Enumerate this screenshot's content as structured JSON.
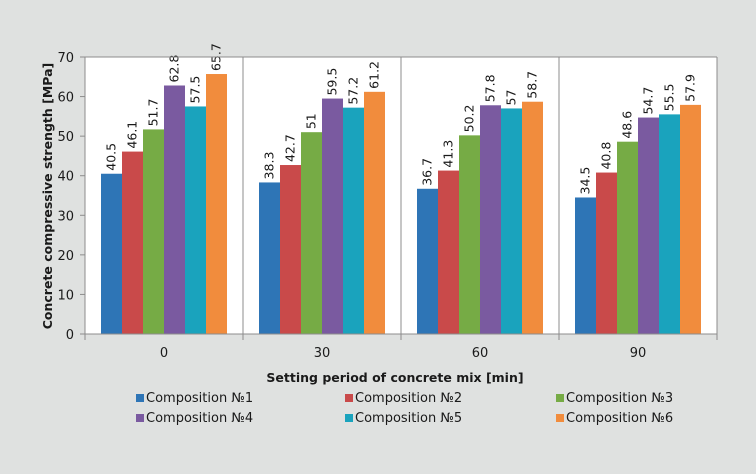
{
  "chart_data": {
    "type": "bar",
    "title": "",
    "xlabel": "Setting period of concrete mix [min]",
    "ylabel": "Concrete compressive strength [MPa]",
    "ylim": [
      0,
      70
    ],
    "yticks": [
      0,
      10,
      20,
      30,
      40,
      50,
      60,
      70
    ],
    "categories": [
      "0",
      "30",
      "60",
      "90"
    ],
    "grid": "vertical separators between categories",
    "legend_position": "bottom",
    "series": [
      {
        "name": "Composition №1",
        "color": "#2e75b6",
        "values": [
          40.5,
          38.3,
          36.7,
          34.5
        ]
      },
      {
        "name": "Composition №2",
        "color": "#c94a4a",
        "values": [
          46.1,
          42.7,
          41.3,
          40.8
        ]
      },
      {
        "name": "Composition №3",
        "color": "#76ab45",
        "values": [
          51.7,
          51,
          50.2,
          48.6
        ]
      },
      {
        "name": "Composition №4",
        "color": "#7a5aa0",
        "values": [
          62.8,
          59.5,
          57.8,
          54.7
        ]
      },
      {
        "name": "Composition №5",
        "color": "#1aa3bd",
        "values": [
          57.5,
          57.2,
          57,
          55.5
        ]
      },
      {
        "name": "Composition №6",
        "color": "#f18c3d",
        "values": [
          65.7,
          61.2,
          58.7,
          57.9
        ]
      }
    ],
    "data_labels": [
      [
        "40.5",
        "46.1",
        "51.7",
        "62.8",
        "57.5",
        "65.7"
      ],
      [
        "38.3",
        "42.7",
        "51",
        "59.5",
        "57.2",
        "61.2"
      ],
      [
        "36.7",
        "41.3",
        "50.2",
        "57.8",
        "57",
        "58.7"
      ],
      [
        "34.5",
        "40.8",
        "48.6",
        "54.7",
        "55.5",
        "57.9"
      ]
    ]
  }
}
